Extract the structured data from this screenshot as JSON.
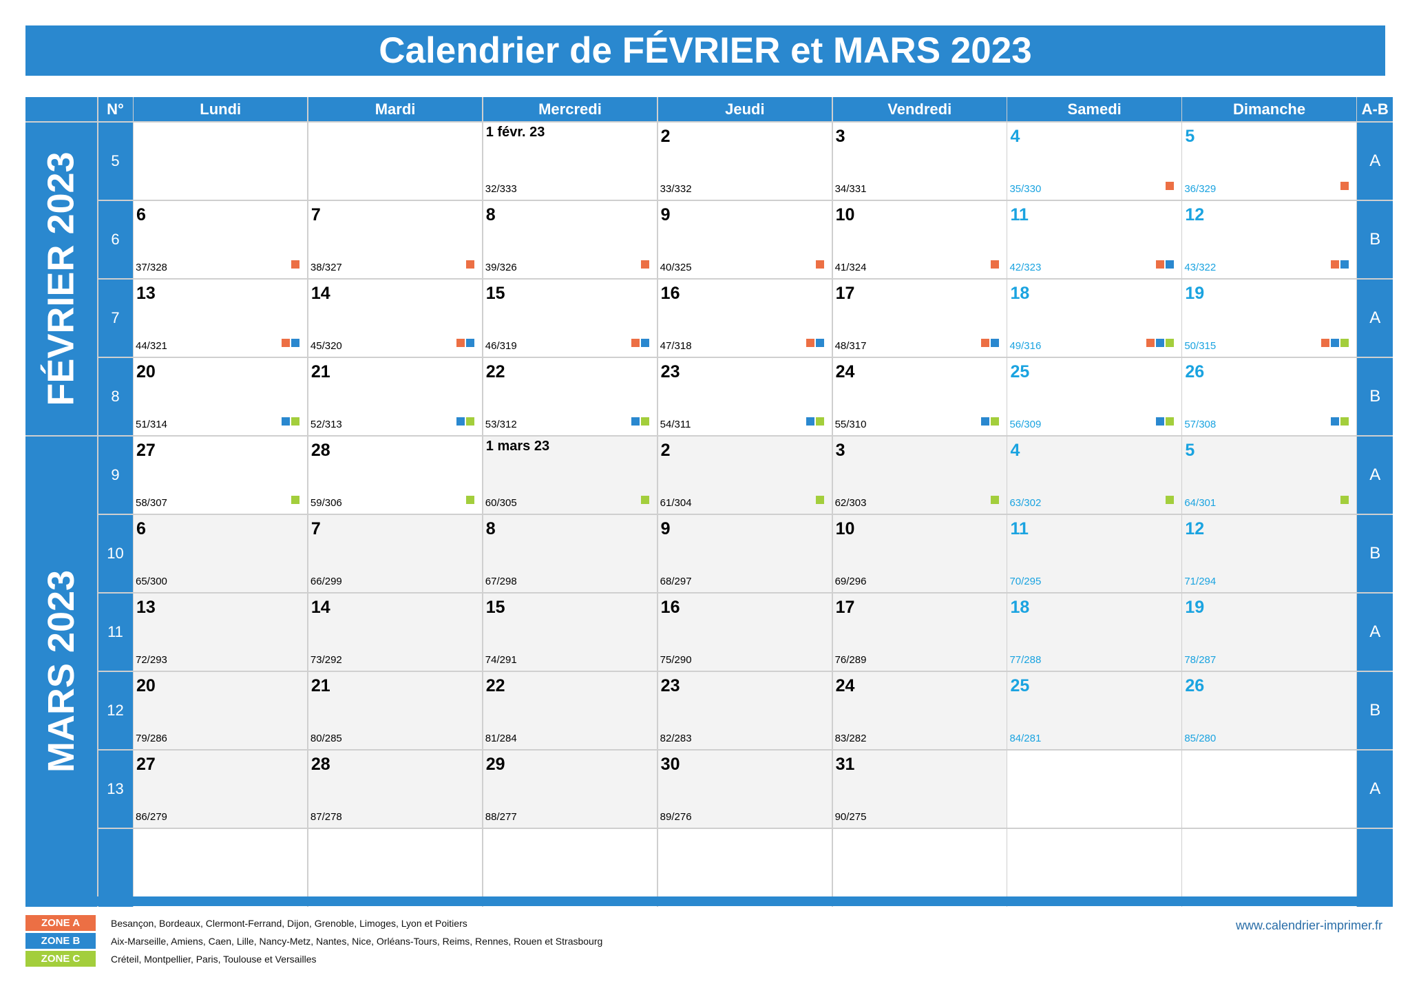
{
  "title": "Calendrier de FÉVRIER et MARS 2023",
  "colors": {
    "accent": "#2a88cf",
    "weekend": "#1aa3e0",
    "zone_a": "#ec6f44",
    "zone_b": "#2a88cf",
    "zone_c": "#a3ce3c"
  },
  "headers": {
    "week": "N°",
    "days": [
      "Lundi",
      "Mardi",
      "Mercredi",
      "Jeudi",
      "Vendredi",
      "Samedi",
      "Dimanche"
    ],
    "ab": "A-B"
  },
  "months": [
    "FÉVRIER 2023",
    "MARS 2023"
  ],
  "weeks": [
    {
      "n": "5",
      "ab": "A",
      "days": [
        null,
        null,
        {
          "d": "1 févr. 23",
          "doy": "32/333"
        },
        {
          "d": "2",
          "doy": "33/332"
        },
        {
          "d": "3",
          "doy": "34/331"
        },
        {
          "d": "4",
          "doy": "35/330",
          "z": "A"
        },
        {
          "d": "5",
          "doy": "36/329",
          "z": "A"
        }
      ]
    },
    {
      "n": "6",
      "ab": "B",
      "days": [
        {
          "d": "6",
          "doy": "37/328",
          "z": "A"
        },
        {
          "d": "7",
          "doy": "38/327",
          "z": "A"
        },
        {
          "d": "8",
          "doy": "39/326",
          "z": "A"
        },
        {
          "d": "9",
          "doy": "40/325",
          "z": "A"
        },
        {
          "d": "10",
          "doy": "41/324",
          "z": "A"
        },
        {
          "d": "11",
          "doy": "42/323",
          "z": "AB"
        },
        {
          "d": "12",
          "doy": "43/322",
          "z": "AB"
        }
      ]
    },
    {
      "n": "7",
      "ab": "A",
      "days": [
        {
          "d": "13",
          "doy": "44/321",
          "z": "AB"
        },
        {
          "d": "14",
          "doy": "45/320",
          "z": "AB"
        },
        {
          "d": "15",
          "doy": "46/319",
          "z": "AB"
        },
        {
          "d": "16",
          "doy": "47/318",
          "z": "AB"
        },
        {
          "d": "17",
          "doy": "48/317",
          "z": "AB"
        },
        {
          "d": "18",
          "doy": "49/316",
          "z": "ABC"
        },
        {
          "d": "19",
          "doy": "50/315",
          "z": "ABC"
        }
      ]
    },
    {
      "n": "8",
      "ab": "B",
      "days": [
        {
          "d": "20",
          "doy": "51/314",
          "z": "BC"
        },
        {
          "d": "21",
          "doy": "52/313",
          "z": "BC"
        },
        {
          "d": "22",
          "doy": "53/312",
          "z": "BC"
        },
        {
          "d": "23",
          "doy": "54/311",
          "z": "BC"
        },
        {
          "d": "24",
          "doy": "55/310",
          "z": "BC"
        },
        {
          "d": "25",
          "doy": "56/309",
          "z": "BC"
        },
        {
          "d": "26",
          "doy": "57/308",
          "z": "BC"
        }
      ]
    },
    {
      "n": "9",
      "ab": "A",
      "days": [
        {
          "d": "27",
          "doy": "58/307",
          "z": "C"
        },
        {
          "d": "28",
          "doy": "59/306",
          "z": "C"
        },
        {
          "d": "1 mars 23",
          "doy": "60/305",
          "z": "C"
        },
        {
          "d": "2",
          "doy": "61/304",
          "z": "C"
        },
        {
          "d": "3",
          "doy": "62/303",
          "z": "C"
        },
        {
          "d": "4",
          "doy": "63/302",
          "z": "C"
        },
        {
          "d": "5",
          "doy": "64/301",
          "z": "C"
        }
      ]
    },
    {
      "n": "10",
      "ab": "B",
      "days": [
        {
          "d": "6",
          "doy": "65/300"
        },
        {
          "d": "7",
          "doy": "66/299"
        },
        {
          "d": "8",
          "doy": "67/298"
        },
        {
          "d": "9",
          "doy": "68/297"
        },
        {
          "d": "10",
          "doy": "69/296"
        },
        {
          "d": "11",
          "doy": "70/295"
        },
        {
          "d": "12",
          "doy": "71/294"
        }
      ]
    },
    {
      "n": "11",
      "ab": "A",
      "days": [
        {
          "d": "13",
          "doy": "72/293"
        },
        {
          "d": "14",
          "doy": "73/292"
        },
        {
          "d": "15",
          "doy": "74/291"
        },
        {
          "d": "16",
          "doy": "75/290"
        },
        {
          "d": "17",
          "doy": "76/289"
        },
        {
          "d": "18",
          "doy": "77/288"
        },
        {
          "d": "19",
          "doy": "78/287"
        }
      ]
    },
    {
      "n": "12",
      "ab": "B",
      "days": [
        {
          "d": "20",
          "doy": "79/286"
        },
        {
          "d": "21",
          "doy": "80/285"
        },
        {
          "d": "22",
          "doy": "81/284"
        },
        {
          "d": "23",
          "doy": "82/283"
        },
        {
          "d": "24",
          "doy": "83/282"
        },
        {
          "d": "25",
          "doy": "84/281"
        },
        {
          "d": "26",
          "doy": "85/280"
        }
      ]
    },
    {
      "n": "13",
      "ab": "A",
      "days": [
        {
          "d": "27",
          "doy": "86/279"
        },
        {
          "d": "28",
          "doy": "87/278"
        },
        {
          "d": "29",
          "doy": "88/277"
        },
        {
          "d": "30",
          "doy": "89/276"
        },
        {
          "d": "31",
          "doy": "90/275"
        },
        null,
        null
      ]
    }
  ],
  "legend": [
    {
      "zone": "ZONE A",
      "cities": "Besançon, Bordeaux, Clermont-Ferrand, Dijon, Grenoble, Limoges, Lyon et Poitiers"
    },
    {
      "zone": "ZONE B",
      "cities": "Aix-Marseille, Amiens, Caen, Lille, Nancy-Metz, Nantes, Nice, Orléans-Tours, Reims, Rennes, Rouen et Strasbourg"
    },
    {
      "zone": "ZONE C",
      "cities": "Créteil, Montpellier, Paris, Toulouse et Versailles"
    }
  ],
  "website": "www.calendrier-imprimer.fr"
}
